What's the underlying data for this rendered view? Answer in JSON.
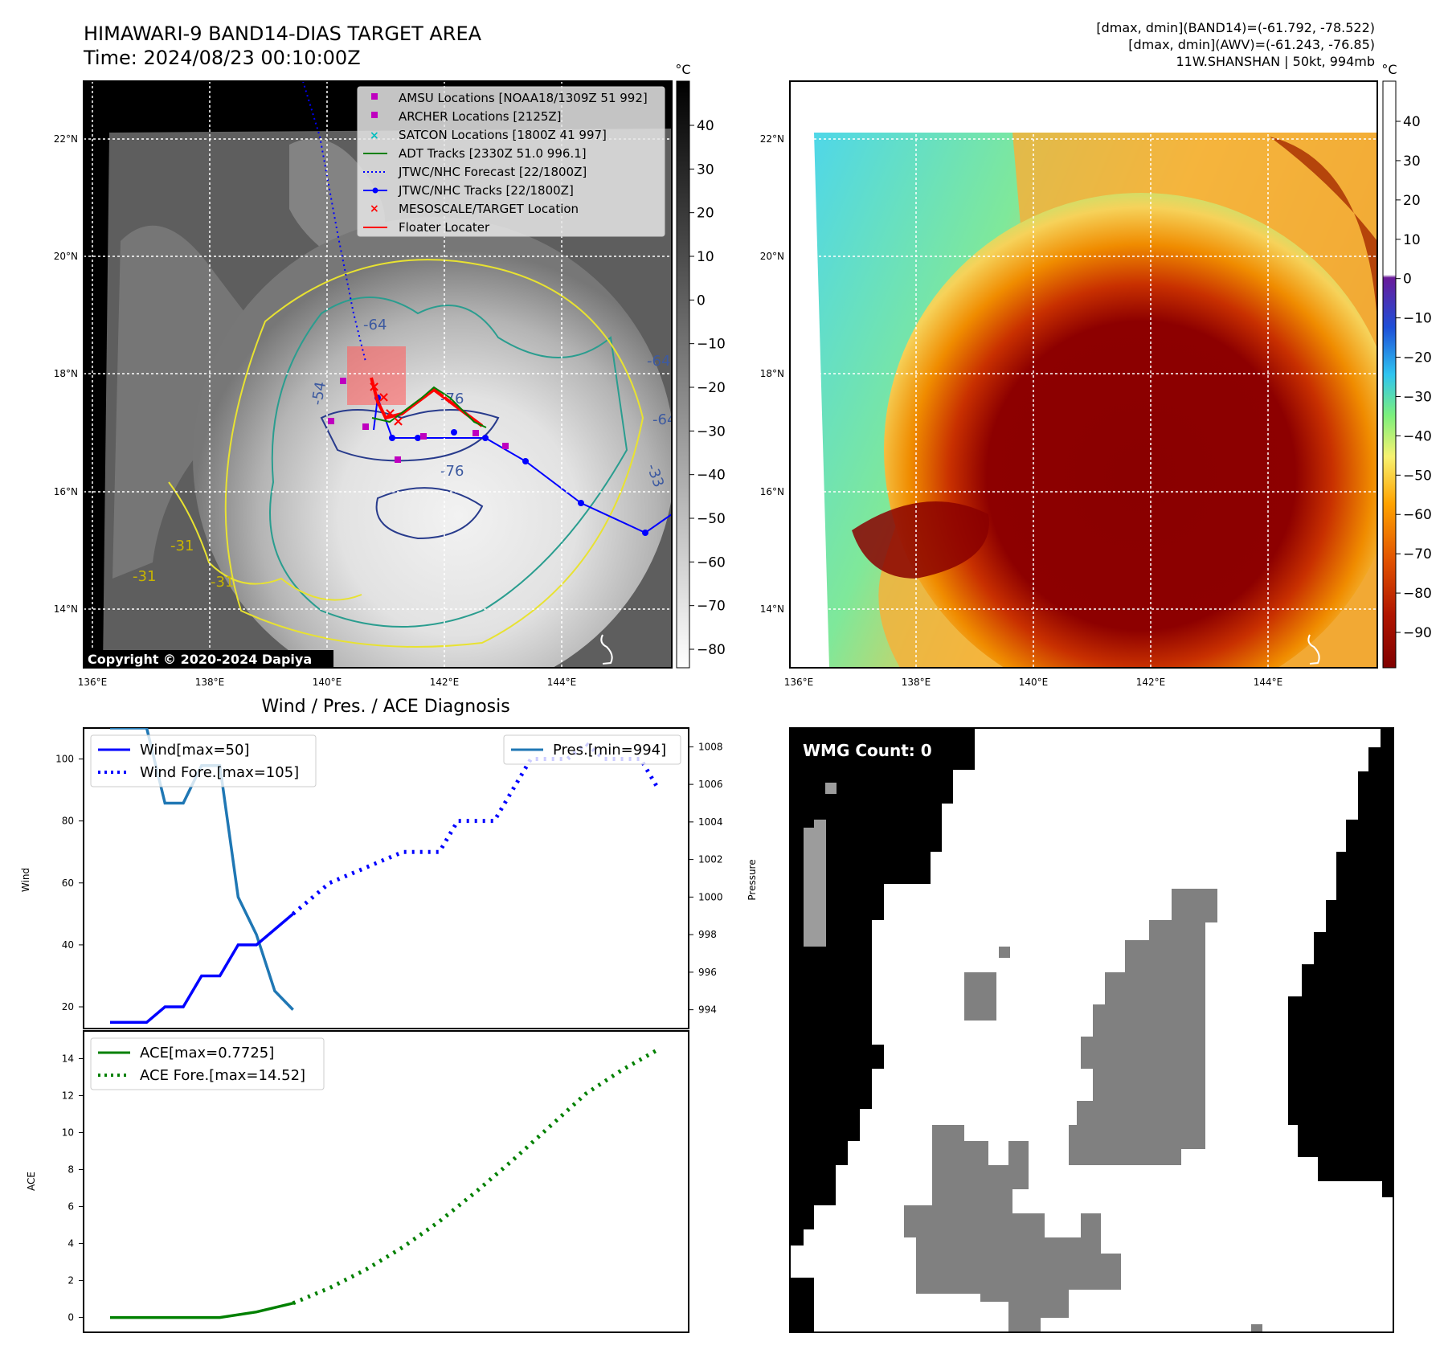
{
  "header": {
    "title_line1": "HIMAWARI-9 BAND14-DIAS TARGET AREA",
    "title_line2": "Time: 2024/08/23 00:10:00Z",
    "info_line1": "[dmax, dmin](BAND14)=(-61.792, -78.522)",
    "info_line2": "[dmax, dmin](AWV)=(-61.243, -76.85)",
    "info_line3": "11W.SHANSHAN | 50kt, 994mb"
  },
  "colors": {
    "wind": "#0000ff",
    "pressure": "#1f77b4",
    "ace": "#008000",
    "amsu": "#bf00bf",
    "satcon": "#00bfbf",
    "adt": "#008000",
    "jtwc": "#0000ff",
    "target": "#ff0000"
  },
  "map_panels": {
    "lon_ticks": [
      "136°E",
      "138°E",
      "140°E",
      "142°E",
      "144°E"
    ],
    "lat_ticks": [
      "22°N",
      "20°N",
      "18°N",
      "16°N",
      "14°N"
    ],
    "colorbar_unit": "°C",
    "ir_colorbar_ticks": [
      "40",
      "30",
      "20",
      "10",
      "0",
      "−10",
      "−20",
      "−30",
      "−40",
      "−50",
      "−60",
      "−70",
      "−80"
    ],
    "awv_colorbar_ticks": [
      "40",
      "30",
      "20",
      "10",
      "0",
      "−10",
      "−20",
      "−30",
      "−40",
      "−50",
      "−60",
      "−70",
      "−80",
      "−90"
    ],
    "copyright": "Copyright © 2020-2024 Dapiya",
    "contour_labels": [
      "-64",
      "-54",
      "-76",
      "-76",
      "-64",
      "-31",
      "-31",
      "-31",
      "-64",
      "-33"
    ],
    "legend": [
      {
        "label": "AMSU Locations [NOAA18/1309Z 51 992]",
        "icon": "magenta-square-icon"
      },
      {
        "label": "ARCHER Locations [2125Z]",
        "icon": "magenta-square-icon"
      },
      {
        "label": "SATCON Locations [1800Z 41 997]",
        "icon": "cyan-x-icon"
      },
      {
        "label": "ADT Tracks [2330Z 51.0 996.1]",
        "icon": "green-line-icon"
      },
      {
        "label": "JTWC/NHC Forecast [22/1800Z]",
        "icon": "blue-dotted-line-icon"
      },
      {
        "label": "JTWC/NHC Tracks [22/1800Z]",
        "icon": "blue-dot-line-icon"
      },
      {
        "label": "MESOSCALE/TARGET Location",
        "icon": "red-x-icon"
      },
      {
        "label": "Floater Locater",
        "icon": "red-line-icon"
      }
    ]
  },
  "wmg": {
    "label": "WMG Count: 0"
  },
  "chart_data": [
    {
      "type": "line",
      "title": "Wind / Pres. / ACE Diagnosis",
      "ylabel": "Wind",
      "ylabel_right": "Pressure",
      "ylim": [
        13,
        110
      ],
      "ylim_right": [
        993,
        1009
      ],
      "yticks": [
        20,
        40,
        60,
        80,
        100
      ],
      "yticks_right": [
        994,
        996,
        998,
        1000,
        1002,
        1004,
        1006,
        1008
      ],
      "x": [
        0,
        1,
        2,
        3,
        4,
        5,
        6,
        7,
        8,
        9,
        10,
        11,
        12,
        13,
        14,
        15,
        16,
        17,
        18,
        19,
        20,
        21,
        22,
        23,
        24,
        25,
        26,
        27,
        28,
        29,
        30
      ],
      "series": [
        {
          "name": "Wind[max=50]",
          "style": "solid",
          "x": [
            0,
            1,
            2,
            3,
            4,
            5,
            6,
            7,
            8,
            9,
            10
          ],
          "values": [
            15,
            15,
            15,
            20,
            20,
            30,
            30,
            40,
            40,
            45,
            50
          ]
        },
        {
          "name": "Wind Fore.[max=105]",
          "style": "dotted",
          "x": [
            10,
            12,
            14,
            16,
            18,
            19,
            20,
            21,
            22,
            23,
            24,
            25,
            26,
            27,
            28,
            29,
            30
          ],
          "values": [
            50,
            60,
            65,
            70,
            70,
            80,
            80,
            80,
            90,
            100,
            100,
            100,
            105,
            100,
            100,
            100,
            90
          ]
        },
        {
          "name": "Pres.[min=994]",
          "style": "solid",
          "axis": "right",
          "x": [
            0,
            1,
            2,
            3,
            4,
            5,
            6,
            7,
            8,
            9,
            10
          ],
          "values": [
            1009,
            1009,
            1009,
            1005,
            1005,
            1007,
            1007,
            1000,
            998,
            995,
            994
          ]
        }
      ]
    },
    {
      "type": "line",
      "ylabel": "ACE",
      "ylim": [
        -0.8,
        15.5
      ],
      "yticks": [
        0,
        2,
        4,
        6,
        8,
        10,
        12,
        14
      ],
      "series": [
        {
          "name": "ACE[max=0.7725]",
          "style": "solid",
          "x": [
            0,
            2,
            4,
            6,
            8,
            10
          ],
          "values": [
            0,
            0,
            0,
            0,
            0.3,
            0.7725
          ]
        },
        {
          "name": "ACE Fore.[max=14.52]",
          "style": "dotted",
          "x": [
            10,
            12,
            14,
            16,
            18,
            20,
            22,
            24,
            26,
            28,
            30
          ],
          "values": [
            0.7725,
            1.6,
            2.6,
            3.8,
            5.2,
            6.8,
            8.5,
            10.3,
            12.1,
            13.4,
            14.52
          ]
        }
      ]
    }
  ]
}
